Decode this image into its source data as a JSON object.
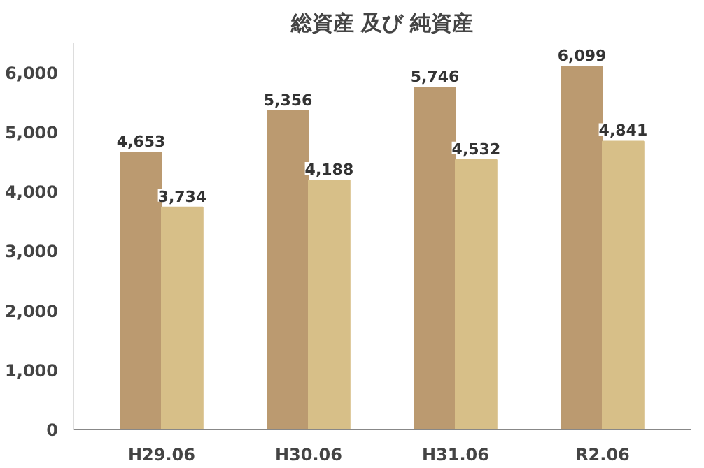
{
  "chart_data": {
    "type": "bar",
    "title": "総資産 及び 純資産",
    "categories": [
      "H29.06",
      "H30.06",
      "H31.06",
      "R2.06"
    ],
    "series": [
      {
        "color": "#bb9a70",
        "values": [
          4653,
          5356,
          5746,
          6099
        ],
        "value_labels": [
          "4,653",
          "5,356",
          "5,746",
          "6,099"
        ]
      },
      {
        "color": "#d7bf88",
        "values": [
          3734,
          4188,
          4532,
          4841
        ],
        "value_labels": [
          "3,734",
          "4,188",
          "4,532",
          "4,841"
        ]
      }
    ],
    "ylim": [
      0,
      6500
    ],
    "yticks": [
      {
        "value": 0,
        "label": "0"
      },
      {
        "value": 1000,
        "label": "1,000"
      },
      {
        "value": 2000,
        "label": "2,000"
      },
      {
        "value": 3000,
        "label": "3,000"
      },
      {
        "value": 4000,
        "label": "4,000"
      },
      {
        "value": 5000,
        "label": "5,000"
      },
      {
        "value": 6000,
        "label": "6,000"
      }
    ],
    "grid": false
  }
}
